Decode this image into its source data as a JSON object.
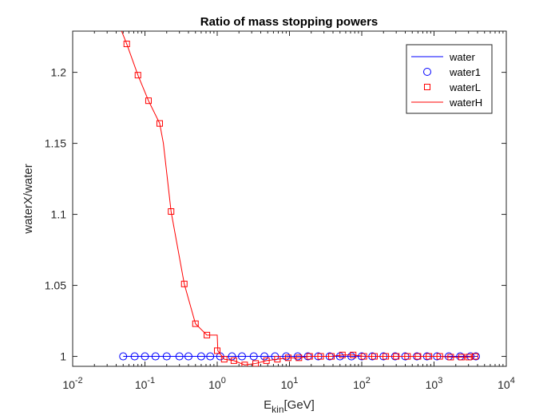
{
  "chart_data": {
    "type": "line",
    "title": "Ratio of mass stopping powers",
    "xlabel": {
      "base": "E",
      "sub": "kin",
      "rest": "[GeV]"
    },
    "ylabel": "waterX/water",
    "xscale": "log",
    "xlim": [
      0.01,
      10000
    ],
    "ylim": [
      0.993,
      1.229
    ],
    "x_ticks": [
      {
        "value": 0.01,
        "base": "10",
        "exp": "-2"
      },
      {
        "value": 0.1,
        "base": "10",
        "exp": "-1"
      },
      {
        "value": 1,
        "base": "10",
        "exp": "0"
      },
      {
        "value": 10,
        "base": "10",
        "exp": "1"
      },
      {
        "value": 100,
        "base": "10",
        "exp": "2"
      },
      {
        "value": 1000,
        "base": "10",
        "exp": "3"
      },
      {
        "value": 10000,
        "base": "10",
        "exp": "4"
      }
    ],
    "y_ticks": [
      {
        "value": 1.0,
        "label": "1"
      },
      {
        "value": 1.05,
        "label": "1.05"
      },
      {
        "value": 1.1,
        "label": "1.1"
      },
      {
        "value": 1.15,
        "label": "1.15"
      },
      {
        "value": 1.2,
        "label": "1.2"
      }
    ],
    "grid": false,
    "legend_position": "top-right",
    "series": [
      {
        "name": "water",
        "style": "line",
        "color": "#0000ff",
        "x": [
          0.05,
          4000
        ],
        "y": [
          1.0,
          1.0
        ]
      },
      {
        "name": "water1",
        "style": "circle",
        "color": "#0000ff",
        "x": [
          0.05,
          0.072,
          0.1,
          0.14,
          0.2,
          0.3,
          0.4,
          0.6,
          0.8,
          1.1,
          1.6,
          2.2,
          3.2,
          4.5,
          6.3,
          9,
          13,
          18,
          25,
          36,
          50,
          72,
          100,
          140,
          200,
          290,
          400,
          580,
          800,
          1100,
          1600,
          2300,
          3200,
          3800
        ],
        "y": [
          1.0,
          1.0,
          1.0,
          1.0,
          1.0,
          1.0,
          1.0,
          1.0,
          1.0,
          1.0,
          1.0,
          1.0,
          1.0,
          1.0,
          1.0,
          1.0,
          1.0,
          1.0,
          1.0,
          1.0,
          1.0,
          1.0,
          1.0,
          1.0,
          1.0,
          1.0,
          1.0,
          1.0,
          1.0,
          1.0,
          1.0,
          1.0,
          1.0,
          1.0
        ]
      },
      {
        "name": "waterL",
        "style": "square",
        "color": "#ff0000",
        "x": [
          0.056,
          0.08,
          0.112,
          0.16,
          0.23,
          0.35,
          0.5,
          0.72,
          1.0,
          1.25,
          1.7,
          2.4,
          3.4,
          4.8,
          6.8,
          9.6,
          13.5,
          19,
          27,
          38,
          54,
          76,
          107,
          150,
          215,
          300,
          430,
          600,
          850,
          1200,
          1700,
          2400,
          3000,
          3700
        ],
        "y": [
          1.22,
          1.198,
          1.18,
          1.164,
          1.102,
          1.051,
          1.023,
          1.015,
          1.004,
          0.998,
          0.997,
          0.994,
          0.995,
          0.997,
          0.998,
          0.999,
          0.999,
          1.0,
          1.0,
          1.0,
          1.001,
          1.001,
          1.0,
          1.0,
          1.0,
          1.0,
          1.0,
          1.0,
          1.0,
          1.0,
          0.9995,
          0.9995,
          0.9995,
          1.0
        ]
      },
      {
        "name": "waterH",
        "style": "line",
        "color": "#ff0000",
        "x": [
          0.045,
          0.056,
          0.08,
          0.112,
          0.16,
          0.18,
          0.23,
          0.35,
          0.5,
          0.72,
          1.0,
          1.02,
          1.25,
          1.7,
          2.4,
          3.4,
          4.8,
          6.8,
          9.6,
          13.5,
          19,
          27,
          38,
          54,
          76,
          107,
          150,
          215,
          300,
          430,
          600,
          850,
          1200,
          1700,
          2400,
          3000,
          3700
        ],
        "y": [
          1.232,
          1.22,
          1.198,
          1.18,
          1.164,
          1.15,
          1.102,
          1.051,
          1.023,
          1.015,
          1.015,
          1.004,
          0.998,
          0.997,
          0.994,
          0.995,
          0.997,
          0.998,
          0.999,
          0.999,
          1.0,
          1.0,
          1.0,
          1.001,
          1.001,
          1.0,
          1.0,
          1.0,
          1.0,
          1.0,
          1.0,
          1.0,
          1.0,
          0.9995,
          0.9995,
          0.9995,
          1.0
        ]
      }
    ]
  }
}
